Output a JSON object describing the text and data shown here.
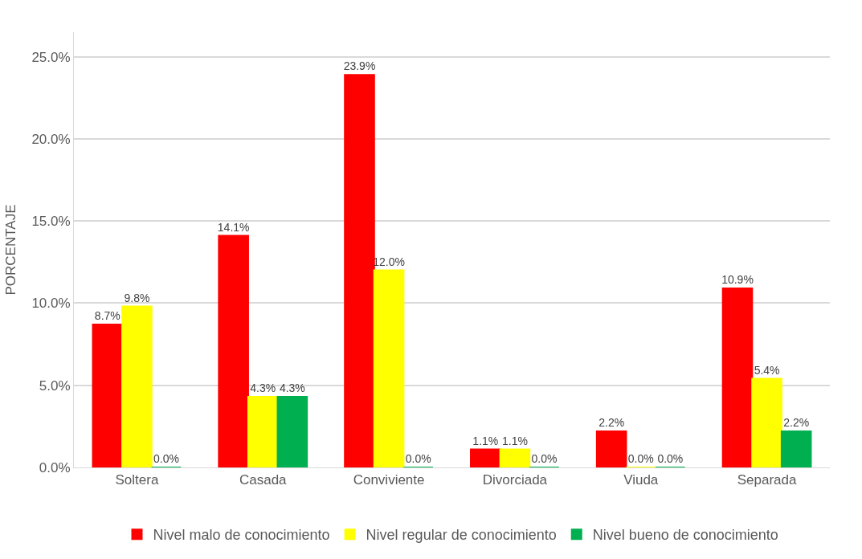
{
  "chart_data": {
    "type": "bar",
    "ylabel": "PORCENTAJE",
    "categories": [
      "Soltera",
      "Casada",
      "Conviviente",
      "Divorciada",
      "Viuda",
      "Separada"
    ],
    "series": [
      {
        "name": "Nivel malo de conocimiento",
        "color": "#ff0000",
        "values": [
          8.7,
          14.1,
          23.9,
          1.1,
          2.2,
          10.9
        ],
        "value_labels": [
          "8.7%",
          "14.1%",
          "23.9%",
          "1.1%",
          "2.2%",
          "10.9%"
        ]
      },
      {
        "name": "Nivel regular de conocimiento",
        "color": "#ffff00",
        "values": [
          9.8,
          4.3,
          12.0,
          1.1,
          0.0,
          5.4
        ],
        "value_labels": [
          "9.8%",
          "4.3%",
          "12.0%",
          "1.1%",
          "0.0%",
          "5.4%"
        ]
      },
      {
        "name": "Nivel bueno de conocimiento",
        "color": "#00b050",
        "values": [
          0.0,
          4.3,
          0.0,
          0.0,
          0.0,
          2.2
        ],
        "value_labels": [
          "0.0%",
          "4.3%",
          "0.0%",
          "0.0%",
          "0.0%",
          "2.2%"
        ]
      }
    ],
    "ylim": [
      0,
      26.5
    ],
    "yticks": [
      {
        "value": 0,
        "label": "0.0%"
      },
      {
        "value": 5,
        "label": "5.0%"
      },
      {
        "value": 10,
        "label": "10.0%"
      },
      {
        "value": 15,
        "label": "15.0%"
      },
      {
        "value": 20,
        "label": "20.0%"
      },
      {
        "value": 25,
        "label": "25.0%"
      }
    ],
    "grid": "y",
    "legend": "bottom"
  }
}
